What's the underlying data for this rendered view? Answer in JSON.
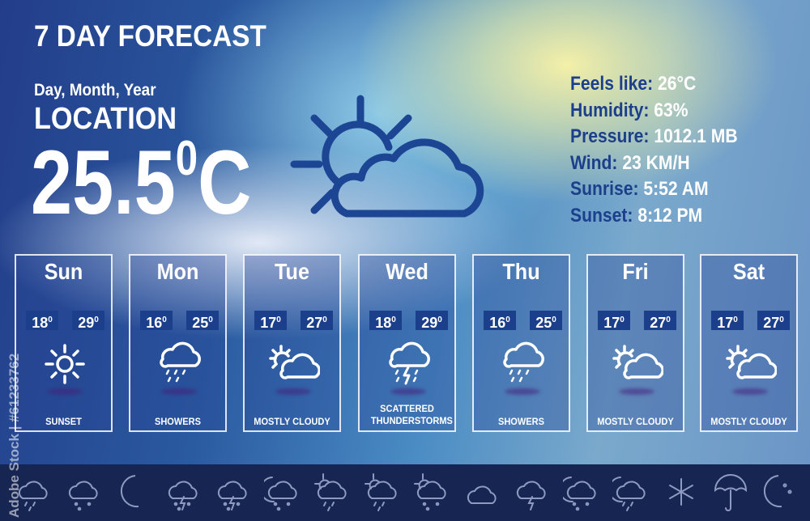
{
  "header": {
    "title": "7 DAY FORECAST",
    "date": "Day, Month, Year",
    "location": "LOCATION",
    "temperature": "25.5",
    "temp_unit_degree": "0",
    "temp_unit": "C",
    "icon": "partly-cloudy-icon"
  },
  "details": [
    {
      "label": "Feels like:",
      "value": "26°C"
    },
    {
      "label": "Humidity:",
      "value": "63%"
    },
    {
      "label": "Pressure:",
      "value": "1012.1 MB"
    },
    {
      "label": "Wind:",
      "value": "23 KM/H"
    },
    {
      "label": "Sunrise:",
      "value": "5:52 AM"
    },
    {
      "label": "Sunset:",
      "value": "8:12 PM"
    }
  ],
  "days": [
    {
      "day": "Sun",
      "low": "18",
      "high": "29",
      "icon": "sun-icon",
      "condition": "SUNSET"
    },
    {
      "day": "Mon",
      "low": "16",
      "high": "25",
      "icon": "rain-cloud-icon",
      "condition": "SHOWERS"
    },
    {
      "day": "Tue",
      "low": "17",
      "high": "27",
      "icon": "partly-cloudy-icon",
      "condition": "MOSTLY CLOUDY"
    },
    {
      "day": "Wed",
      "low": "18",
      "high": "29",
      "icon": "thunderstorm-icon",
      "condition": "SCATTERED THUNDERSTORMS"
    },
    {
      "day": "Thu",
      "low": "16",
      "high": "25",
      "icon": "rain-cloud-icon",
      "condition": "SHOWERS"
    },
    {
      "day": "Fri",
      "low": "17",
      "high": "27",
      "icon": "partly-cloudy-icon",
      "condition": "MOSTLY CLOUDY"
    },
    {
      "day": "Sat",
      "low": "17",
      "high": "27",
      "icon": "partly-cloudy-icon",
      "condition": "MOSTLY CLOUDY"
    }
  ],
  "degree_symbol": "0",
  "icon_strip": [
    "rain-cloud-icon",
    "snow-cloud-icon",
    "moon-icon",
    "thunder-snow-icon",
    "thunder-snow-icon",
    "night-sleet-icon",
    "sun-rain-icon",
    "sun-drizzle-icon",
    "sun-snow-icon",
    "cloud-icon",
    "thunder-cloud-icon",
    "night-snow-icon",
    "night-rain-icon",
    "snowflake-icon",
    "umbrella-icon",
    "moon-stars-icon"
  ],
  "colors": {
    "accent": "#1c3f8c",
    "band": "#162552"
  },
  "watermark": "Adobe Stock | #61233762"
}
